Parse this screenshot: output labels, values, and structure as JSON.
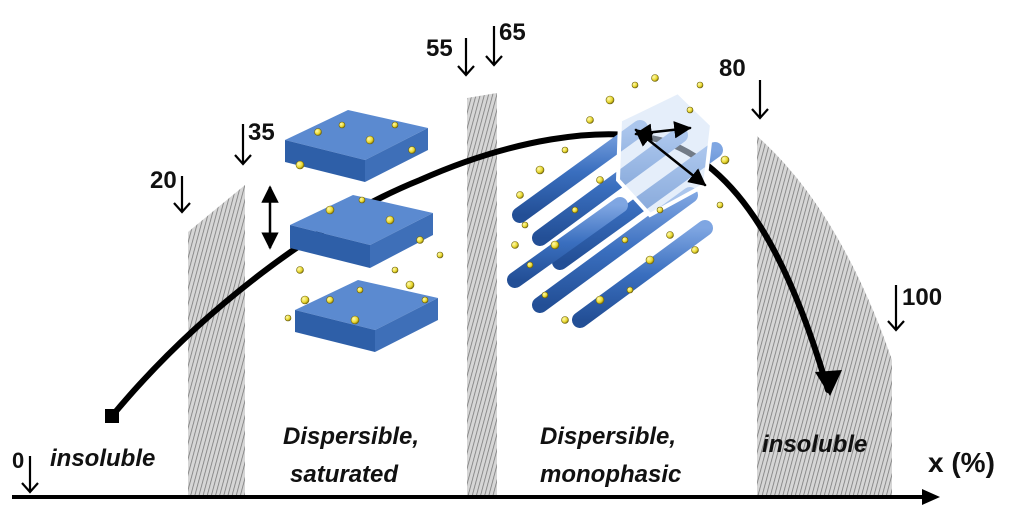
{
  "axis": {
    "label": "x (%)"
  },
  "markers": [
    "0",
    "20",
    "35",
    "55",
    "65",
    "80",
    "100"
  ],
  "regions": {
    "insoluble_left": "insoluble",
    "saturated_line1": "Dispersible,",
    "saturated_line2": "saturated",
    "monophasic_line1": "Dispersible,",
    "monophasic_line2": "monophasic",
    "insoluble_right": "insoluble"
  },
  "colors": {
    "hatch": "#9a9a9a",
    "sheet_top": "#4f7dc4",
    "sheet_side": "#2e5fa8",
    "rod": "#3a6fbf",
    "particle": "#f2e23a",
    "curve": "#000000"
  }
}
